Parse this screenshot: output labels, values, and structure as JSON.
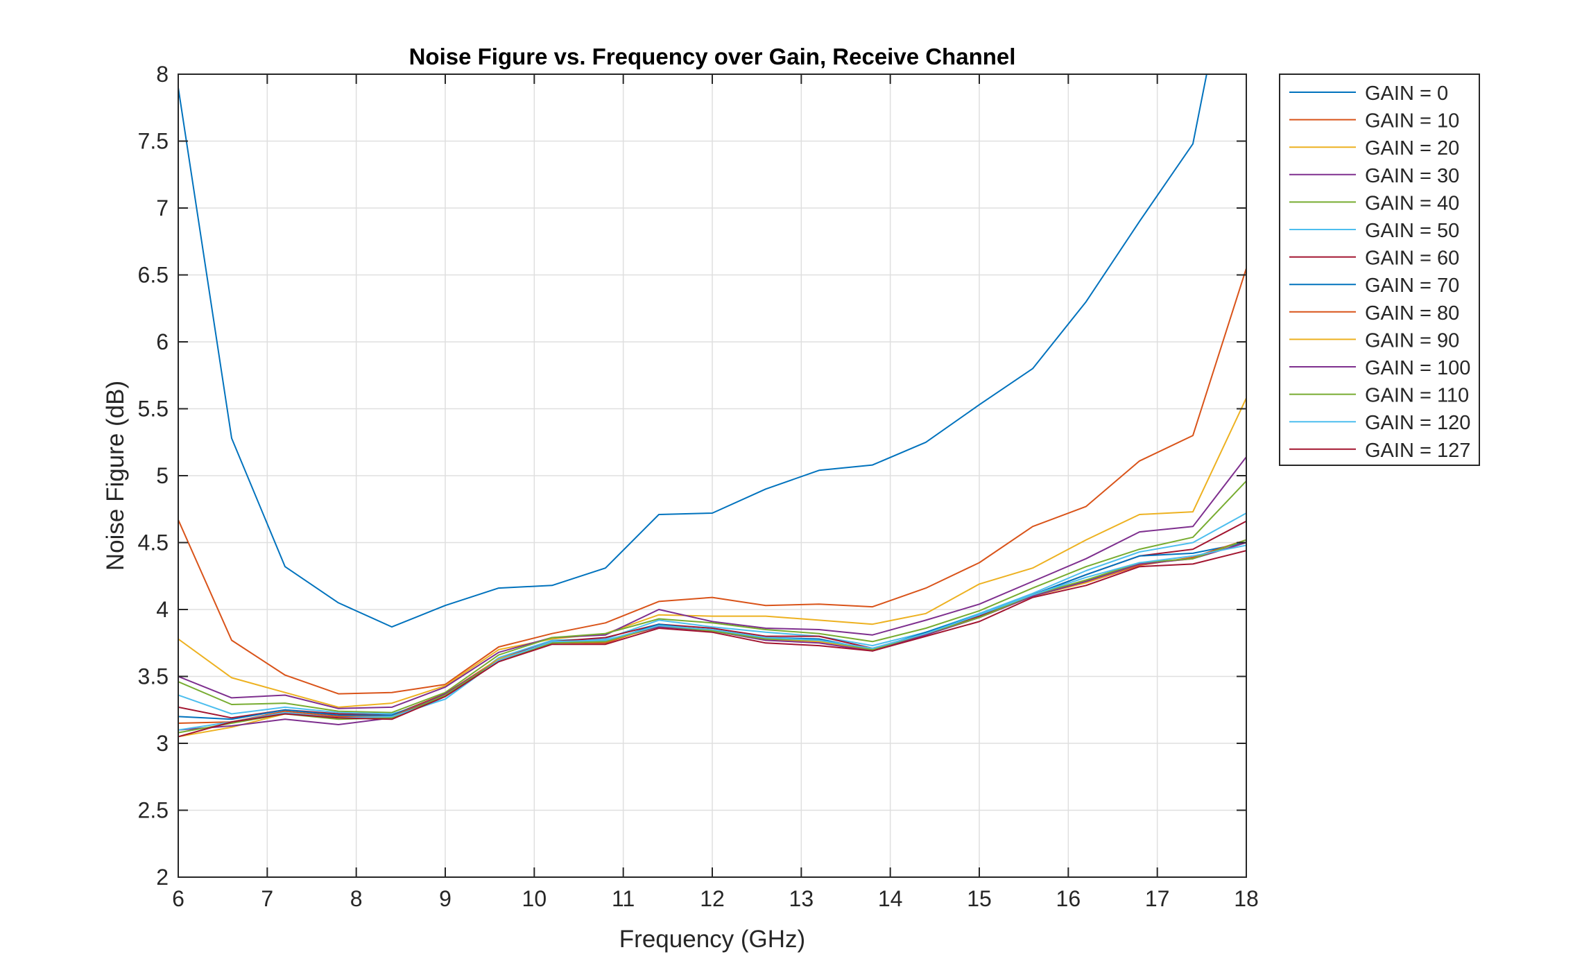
{
  "chart_data": {
    "type": "line",
    "title": "Noise Figure vs. Frequency over Gain, Receive Channel",
    "xlabel": "Frequency (GHz)",
    "ylabel": "Noise Figure (dB)",
    "xlim": [
      6,
      18
    ],
    "ylim": [
      2,
      8
    ],
    "xticks": [
      6,
      7,
      8,
      9,
      10,
      11,
      12,
      13,
      14,
      15,
      16,
      17,
      18
    ],
    "yticks": [
      2,
      2.5,
      3,
      3.5,
      4,
      4.5,
      5,
      5.5,
      6,
      6.5,
      7,
      7.5,
      8
    ],
    "grid": true,
    "legend_position": "outside-top-right",
    "x": [
      6.0,
      6.6,
      7.2,
      7.8,
      8.4,
      9.0,
      9.6,
      10.2,
      10.8,
      11.4,
      12.0,
      12.6,
      13.2,
      13.8,
      14.4,
      15.0,
      15.6,
      16.2,
      16.8,
      17.4,
      18.0
    ],
    "series": [
      {
        "name": "GAIN = 0",
        "color": "#0072BD",
        "values": [
          7.9,
          5.28,
          4.32,
          4.05,
          3.87,
          4.03,
          4.16,
          4.18,
          4.31,
          4.71,
          4.72,
          4.9,
          5.04,
          5.08,
          5.25,
          5.53,
          5.8,
          6.3,
          6.9,
          7.48,
          9.5
        ]
      },
      {
        "name": "GAIN = 10",
        "color": "#D95319",
        "values": [
          4.67,
          3.77,
          3.51,
          3.37,
          3.38,
          3.44,
          3.72,
          3.82,
          3.9,
          4.06,
          4.09,
          4.03,
          4.04,
          4.02,
          4.16,
          4.35,
          4.62,
          4.77,
          5.11,
          5.3,
          6.55
        ]
      },
      {
        "name": "GAIN = 20",
        "color": "#EDB120",
        "values": [
          3.78,
          3.49,
          3.38,
          3.27,
          3.3,
          3.43,
          3.7,
          3.78,
          3.82,
          3.96,
          3.95,
          3.95,
          3.92,
          3.89,
          3.97,
          4.19,
          4.31,
          4.52,
          4.71,
          4.73,
          5.58
        ]
      },
      {
        "name": "GAIN = 30",
        "color": "#7E2F8E",
        "values": [
          3.5,
          3.34,
          3.36,
          3.26,
          3.27,
          3.42,
          3.68,
          3.79,
          3.81,
          4.0,
          3.91,
          3.86,
          3.85,
          3.81,
          3.92,
          4.04,
          4.21,
          4.38,
          4.58,
          4.62,
          5.14
        ]
      },
      {
        "name": "GAIN = 40",
        "color": "#77AC30",
        "values": [
          3.46,
          3.29,
          3.3,
          3.24,
          3.23,
          3.38,
          3.66,
          3.79,
          3.82,
          3.93,
          3.9,
          3.85,
          3.82,
          3.76,
          3.86,
          3.99,
          4.16,
          4.32,
          4.45,
          4.54,
          4.96
        ]
      },
      {
        "name": "GAIN = 50",
        "color": "#4DBEEE",
        "values": [
          3.36,
          3.22,
          3.27,
          3.23,
          3.22,
          3.33,
          3.64,
          3.77,
          3.78,
          3.92,
          3.87,
          3.83,
          3.8,
          3.73,
          3.83,
          3.97,
          4.12,
          4.29,
          4.43,
          4.5,
          4.72
        ]
      },
      {
        "name": "GAIN = 60",
        "color": "#A2142F",
        "values": [
          3.27,
          3.19,
          3.25,
          3.22,
          3.21,
          3.37,
          3.63,
          3.76,
          3.79,
          3.89,
          3.86,
          3.8,
          3.8,
          3.71,
          3.82,
          3.95,
          4.11,
          4.26,
          4.4,
          4.45,
          4.66
        ]
      },
      {
        "name": "GAIN = 70",
        "color": "#0072BD",
        "values": [
          3.2,
          3.18,
          3.25,
          3.21,
          3.21,
          3.36,
          3.61,
          3.75,
          3.76,
          3.89,
          3.84,
          3.79,
          3.78,
          3.7,
          3.83,
          3.96,
          4.11,
          4.26,
          4.4,
          4.42,
          4.5
        ]
      },
      {
        "name": "GAIN = 80",
        "color": "#D95319",
        "values": [
          3.15,
          3.16,
          3.24,
          3.2,
          3.2,
          3.37,
          3.63,
          3.75,
          3.75,
          3.88,
          3.84,
          3.78,
          3.76,
          3.7,
          3.82,
          3.94,
          4.1,
          4.2,
          4.33,
          4.39,
          4.52
        ]
      },
      {
        "name": "GAIN = 90",
        "color": "#EDB120",
        "values": [
          3.05,
          3.12,
          3.22,
          3.19,
          3.19,
          3.36,
          3.63,
          3.75,
          3.76,
          3.87,
          3.84,
          3.77,
          3.76,
          3.7,
          3.81,
          3.94,
          4.1,
          4.2,
          4.34,
          4.38,
          4.5
        ]
      },
      {
        "name": "GAIN = 100",
        "color": "#7E2F8E",
        "values": [
          3.1,
          3.13,
          3.18,
          3.14,
          3.19,
          3.37,
          3.62,
          3.76,
          3.77,
          3.87,
          3.84,
          3.77,
          3.75,
          3.69,
          3.81,
          3.94,
          4.1,
          4.21,
          4.34,
          4.38,
          4.5
        ]
      },
      {
        "name": "GAIN = 110",
        "color": "#77AC30",
        "values": [
          3.08,
          3.15,
          3.22,
          3.18,
          3.19,
          3.36,
          3.62,
          3.75,
          3.76,
          3.88,
          3.84,
          3.78,
          3.77,
          3.7,
          3.82,
          3.94,
          4.11,
          4.22,
          4.35,
          4.38,
          4.52
        ]
      },
      {
        "name": "GAIN = 120",
        "color": "#4DBEEE",
        "values": [
          3.1,
          3.16,
          3.23,
          3.19,
          3.2,
          3.33,
          3.62,
          3.76,
          3.77,
          3.88,
          3.85,
          3.79,
          3.77,
          3.71,
          3.82,
          3.96,
          4.11,
          4.24,
          4.35,
          4.4,
          4.48
        ]
      },
      {
        "name": "GAIN = 127",
        "color": "#A2142F",
        "values": [
          3.05,
          3.16,
          3.22,
          3.19,
          3.18,
          3.35,
          3.61,
          3.74,
          3.74,
          3.86,
          3.83,
          3.75,
          3.73,
          3.69,
          3.8,
          3.91,
          4.09,
          4.18,
          4.32,
          4.34,
          4.44
        ]
      }
    ]
  }
}
